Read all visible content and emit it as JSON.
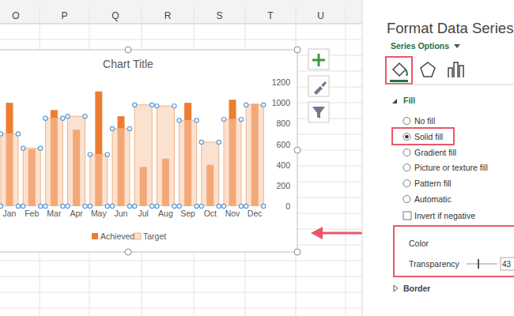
{
  "spreadsheet": {
    "columns": [
      "O",
      "P",
      "Q",
      "R",
      "S",
      "T",
      "U"
    ]
  },
  "chart_data": {
    "type": "bar",
    "title": "Chart Title",
    "categories": [
      "Jan",
      "Feb",
      "Mar",
      "Apr",
      "May",
      "Jun",
      "Jul",
      "Aug",
      "Sep",
      "Oct",
      "Nov",
      "Dec"
    ],
    "series": [
      {
        "name": "Achieved",
        "color": "#ed7d31",
        "values": [
          1000,
          550,
          930,
          740,
          1110,
          870,
          380,
          460,
          1000,
          400,
          1030,
          990
        ]
      },
      {
        "name": "Target",
        "color": "#f8cbad",
        "values": [
          700,
          560,
          850,
          870,
          500,
          750,
          980,
          970,
          830,
          620,
          840,
          980
        ]
      }
    ],
    "ylim": [
      0,
      1200
    ],
    "yticks": [
      0,
      200,
      400,
      600,
      800,
      1000,
      1200
    ],
    "grid": false,
    "legend": "bottom"
  },
  "format_pane": {
    "title": "Format Data Series",
    "section": "Series Options",
    "fill_heading": "Fill",
    "fill_options": [
      "No fill",
      "Solid fill",
      "Gradient fill",
      "Picture or texture fill",
      "Pattern fill",
      "Automatic"
    ],
    "selected_fill_option": 1,
    "invert_label": "Invert if negative",
    "invert_checked": false,
    "color_label": "Color",
    "transparency_label": "Transparency",
    "transparency_value": "43",
    "border_heading": "Border"
  }
}
